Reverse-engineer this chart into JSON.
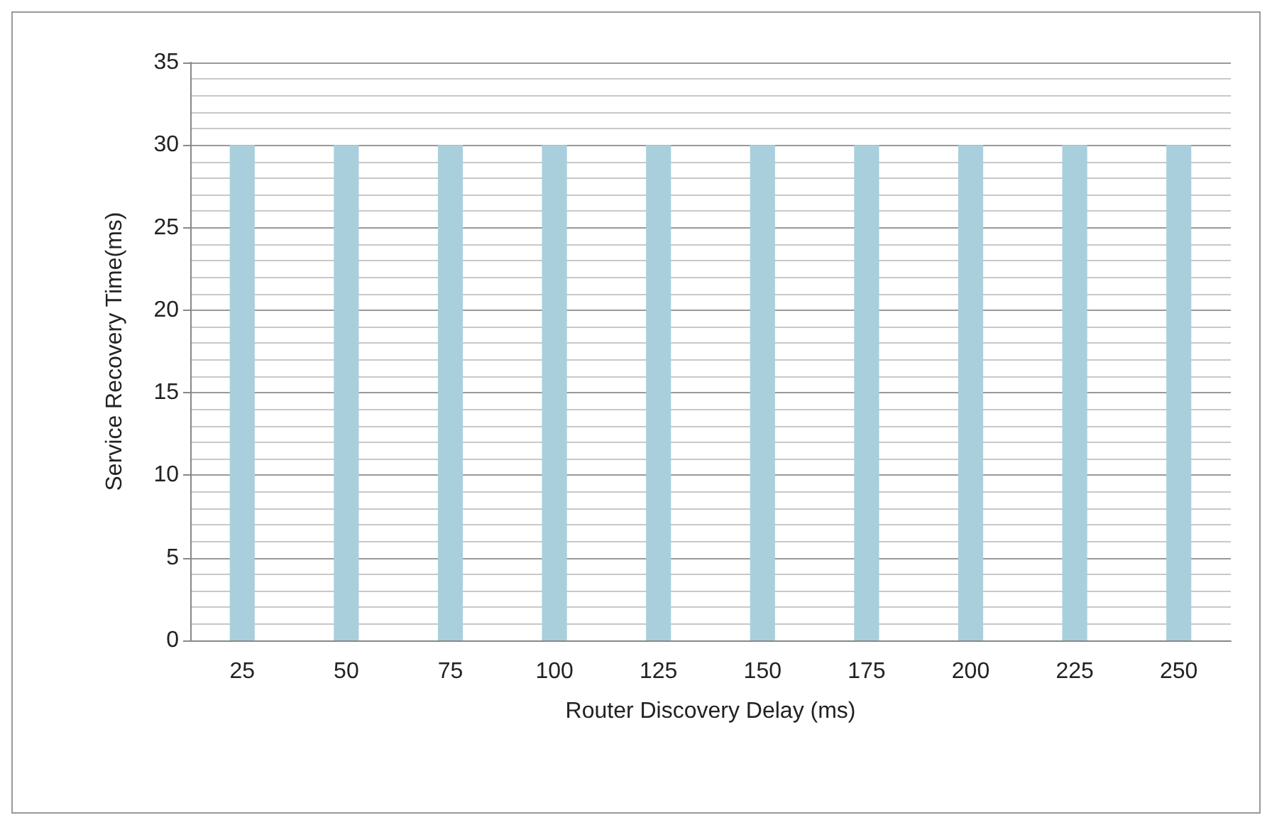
{
  "chart_data": {
    "type": "bar",
    "xlabel": "Router Discovery Delay (ms)",
    "ylabel": "Service Recovery Time(ms)",
    "categories": [
      "25",
      "50",
      "75",
      "100",
      "125",
      "150",
      "175",
      "200",
      "225",
      "250"
    ],
    "values": [
      30,
      30,
      30,
      30,
      30,
      30,
      30,
      30,
      30,
      30
    ],
    "color": "#a9cfdc",
    "ylim": [
      0,
      35
    ],
    "yticks": [
      0,
      5,
      10,
      15,
      20,
      25,
      30,
      35
    ],
    "grid": "y"
  }
}
